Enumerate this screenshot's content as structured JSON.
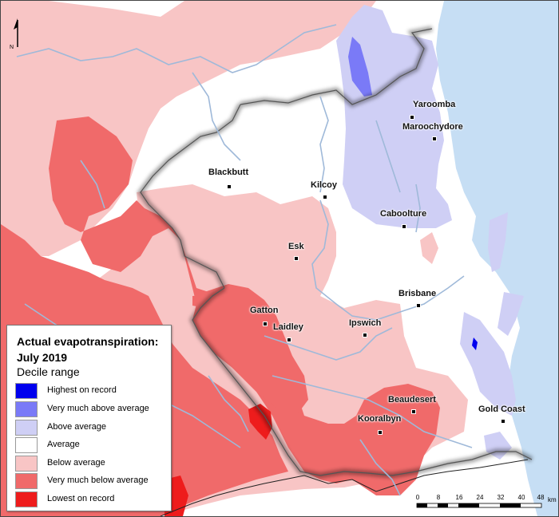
{
  "legend": {
    "title": "Actual evapotranspiration: July 2019",
    "subtitle": "Decile range",
    "items": [
      {
        "label": "Highest on record",
        "color": "#0000ee"
      },
      {
        "label": "Very much above average",
        "color": "#7a7af7"
      },
      {
        "label": "Above average",
        "color": "#cfcff5"
      },
      {
        "label": "Average",
        "color": "#ffffff"
      },
      {
        "label": "Below average",
        "color": "#f8c5c5"
      },
      {
        "label": "Very much below average",
        "color": "#f06a6a"
      },
      {
        "label": "Lowest on record",
        "color": "#ee1c1c"
      }
    ]
  },
  "places": [
    {
      "name": "Yarooomba",
      "display": "Yaroomba"
    },
    {
      "name": "Maroochydore",
      "display": "Maroochydore"
    },
    {
      "name": "Blackbutt",
      "display": "Blackbutt"
    },
    {
      "name": "Kilcoy",
      "display": "Kilcoy"
    },
    {
      "name": "Caboolture",
      "display": "Caboolture"
    },
    {
      "name": "Esk",
      "display": "Esk"
    },
    {
      "name": "Brisbane",
      "display": "Brisbane"
    },
    {
      "name": "Gatton",
      "display": "Gatton"
    },
    {
      "name": "Laidley",
      "display": "Laidley"
    },
    {
      "name": "Ipswich",
      "display": "Ipswich"
    },
    {
      "name": "Beaudesert",
      "display": "Beaudesert"
    },
    {
      "name": "Kooralbyn",
      "display": "Kooralbyn"
    },
    {
      "name": "Gold Coast",
      "display": "Gold Coast"
    }
  ],
  "north_arrow": {
    "label": "N"
  },
  "scale_bar": {
    "ticks": [
      "0",
      "8",
      "16",
      "24",
      "32",
      "40",
      "48"
    ],
    "unit": "km"
  },
  "colors": {
    "ocean": "#c6def4",
    "river": "#9fb9d9",
    "highest": "#0000ee",
    "very_much_above": "#7a7af7",
    "above": "#cfcff5",
    "average": "#ffffff",
    "below": "#f8c5c5",
    "very_much_below": "#f06a6a",
    "lowest": "#ee1c1c"
  }
}
